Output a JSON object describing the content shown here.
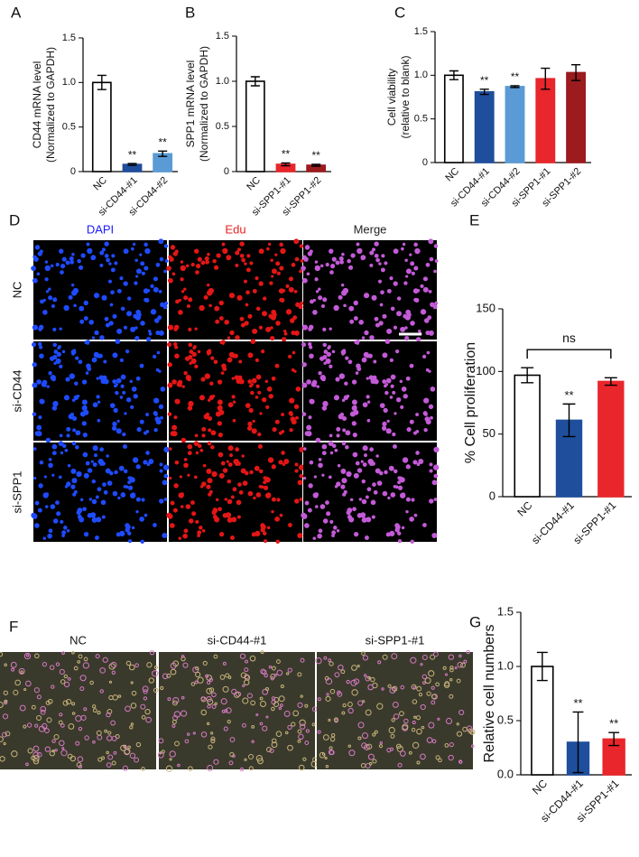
{
  "panels": {
    "letters": [
      "A",
      "B",
      "C",
      "D",
      "E",
      "F",
      "G"
    ]
  },
  "micrograph_d": {
    "columns": [
      "DAPI",
      "Edu",
      "Merge"
    ],
    "rows": [
      "NC",
      "si-CD44",
      "si-SPP1"
    ]
  },
  "micrograph_f": {
    "columns": [
      "NC",
      "si-CD44-#1",
      "si-SPP1-#1"
    ]
  },
  "chart_data": [
    {
      "type": "bar",
      "ylabel": [
        "CD44 mRNA level",
        "(Normalized to GAPDH)"
      ],
      "categories": [
        "NC",
        "si-CD44-#1",
        "si-CD44-#2"
      ],
      "values": [
        1.0,
        0.08,
        0.2
      ],
      "errors": [
        0.08,
        0.01,
        0.03
      ],
      "colors": [
        "#ffffff",
        "#1f4e9c",
        "#5b9bd5"
      ],
      "ylim": [
        0,
        1.5
      ],
      "yticks": [
        0,
        {
          "value": 0.5,
          "label": "0.5"
        },
        {
          "value": 1,
          "label": "1.0"
        },
        {
          "value": 1.5,
          "label": "1.5"
        }
      ],
      "significance": [
        {
          "category": "si-CD44-#1",
          "label": "**"
        },
        {
          "category": "si-CD44-#2",
          "label": "**"
        }
      ]
    },
    {
      "type": "bar",
      "ylabel": [
        "SPP1 mRNA level",
        "(Normalized to GAPDH)"
      ],
      "categories": [
        "NC",
        "si-SPP1-#1",
        "si-SPP1-#2"
      ],
      "values": [
        1.0,
        0.08,
        0.07
      ],
      "errors": [
        0.05,
        0.015,
        0.01
      ],
      "colors": [
        "#ffffff",
        "#e8262b",
        "#9b1b1f"
      ],
      "ylim": [
        0,
        1.5
      ],
      "yticks": [
        0,
        {
          "value": 0.5,
          "label": "0.5"
        },
        {
          "value": 1,
          "label": "1.0"
        },
        {
          "value": 1.5,
          "label": "1.5"
        }
      ],
      "significance": [
        {
          "category": "si-SPP1-#1",
          "label": "**"
        },
        {
          "category": "si-SPP1-#2",
          "label": "**"
        }
      ]
    },
    {
      "type": "bar",
      "ylabel": [
        "Cell viability",
        "(relative to blank)"
      ],
      "categories": [
        "NC",
        "si-CD44-#1",
        "si-CD44-#2",
        "si-SPP1-#1",
        "si-SPP1-#2"
      ],
      "values": [
        1.0,
        0.81,
        0.87,
        0.96,
        1.03
      ],
      "errors": [
        0.05,
        0.03,
        0.01,
        0.12,
        0.09
      ],
      "colors": [
        "#ffffff",
        "#1f4e9c",
        "#5b9bd5",
        "#e8262b",
        "#9b1b1f"
      ],
      "ylim": [
        0,
        1.5
      ],
      "yticks": [
        0,
        {
          "value": 0.5,
          "label": "0.5"
        },
        {
          "value": 1,
          "label": "1.0"
        },
        {
          "value": 1.5,
          "label": "1.5"
        }
      ],
      "significance": [
        {
          "category": "si-CD44-#1",
          "label": "**"
        },
        {
          "category": "si-CD44-#2",
          "label": "**"
        }
      ]
    },
    {
      "type": "bar",
      "ylabel": [
        "% Cell proliferation"
      ],
      "categories": [
        "NC",
        "si-CD44-#1",
        "si-SPP1-#1"
      ],
      "values": [
        97,
        61,
        92
      ],
      "errors": [
        6,
        13,
        3
      ],
      "colors": [
        "#ffffff",
        "#1f4e9c",
        "#e8262b"
      ],
      "ylim": [
        0,
        150
      ],
      "yticks": [
        0,
        50,
        100,
        150
      ],
      "significance": [
        {
          "category": "si-CD44-#1",
          "label": "**"
        }
      ],
      "brackets": [
        {
          "from": "NC",
          "to": "si-SPP1-#1",
          "label": "ns"
        }
      ]
    },
    {
      "type": "bar",
      "ylabel": [
        "Relative cell numbers"
      ],
      "categories": [
        "NC",
        "si-CD44-#1",
        "si-SPP1-#1"
      ],
      "values": [
        1.0,
        0.3,
        0.33
      ],
      "errors": [
        0.13,
        0.28,
        0.06
      ],
      "colors": [
        "#ffffff",
        "#1f4e9c",
        "#e8262b"
      ],
      "ylim": [
        0,
        1.5
      ],
      "yticks": [
        {
          "value": 0,
          "label": "0.0"
        },
        {
          "value": 0.5,
          "label": "0.5"
        },
        {
          "value": 1,
          "label": "1.0"
        },
        {
          "value": 1.5,
          "label": "1.5"
        }
      ],
      "significance": [
        {
          "category": "si-CD44-#1",
          "label": "**"
        },
        {
          "category": "si-SPP1-#1",
          "label": "**"
        }
      ]
    }
  ]
}
